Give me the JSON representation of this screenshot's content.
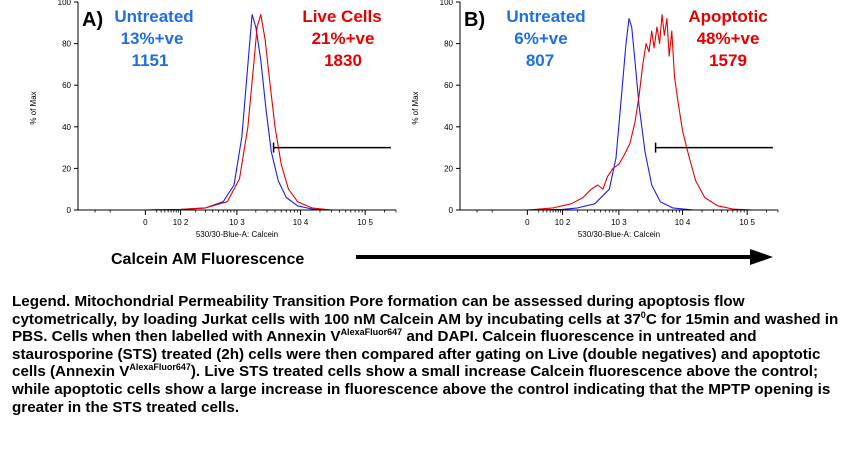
{
  "chart_data": [
    {
      "type": "line",
      "panel_label": "A)",
      "xlabel": "530/30-Blue-A: Calcein",
      "ylabel": "% of Max",
      "xscale": "log",
      "xlim": [
        -400,
        300000
      ],
      "ylim": [
        0,
        100
      ],
      "yticks": [
        0,
        20,
        40,
        60,
        80,
        100
      ],
      "xtick_labels": [
        "0",
        "10 2",
        "10 3",
        "10 4",
        "10 5"
      ],
      "xtick_values": [
        0,
        100,
        1000,
        10000,
        100000
      ],
      "series": [
        {
          "name": "Untreated",
          "color": "#1e1ee6",
          "points": [
            [
              0,
              0
            ],
            [
              100,
              0.3
            ],
            [
              300,
              1
            ],
            [
              600,
              4
            ],
            [
              900,
              12
            ],
            [
              1200,
              35
            ],
            [
              1500,
              70
            ],
            [
              1750,
              94
            ],
            [
              2000,
              88
            ],
            [
              2400,
              72
            ],
            [
              2900,
              48
            ],
            [
              3500,
              28
            ],
            [
              4500,
              14
            ],
            [
              6000,
              6
            ],
            [
              9000,
              2
            ],
            [
              15000,
              0.5
            ],
            [
              30000,
              0
            ]
          ]
        },
        {
          "name": "Live Cells",
          "color": "#e60000",
          "points": [
            [
              0,
              0
            ],
            [
              100,
              0.3
            ],
            [
              300,
              1
            ],
            [
              700,
              4
            ],
            [
              1100,
              15
            ],
            [
              1500,
              40
            ],
            [
              1850,
              70
            ],
            [
              2100,
              88
            ],
            [
              2400,
              94
            ],
            [
              2800,
              82
            ],
            [
              3300,
              62
            ],
            [
              4000,
              40
            ],
            [
              5000,
              22
            ],
            [
              6500,
              10
            ],
            [
              9000,
              4
            ],
            [
              15000,
              1
            ],
            [
              30000,
              0
            ]
          ]
        }
      ],
      "annotations": [
        {
          "name": "Untreated",
          "pct": "13%+ve",
          "mfi": "1151",
          "color": "#1e6fe6"
        },
        {
          "name": "Live Cells",
          "pct": "21%+ve",
          "mfi": "1830",
          "color": "#e60000"
        }
      ],
      "gate": {
        "x_start": 3800,
        "x_end": 250000,
        "y": 30
      }
    },
    {
      "type": "line",
      "panel_label": "B)",
      "xlabel": "530/30-Blue-A: Calcein",
      "ylabel": "% of Max",
      "xscale": "log",
      "xlim": [
        -400,
        300000
      ],
      "ylim": [
        0,
        100
      ],
      "yticks": [
        0,
        20,
        40,
        60,
        80,
        100
      ],
      "xtick_labels": [
        "0",
        "10 2",
        "10 3",
        "10 4",
        "10 5"
      ],
      "xtick_values": [
        0,
        100,
        1000,
        10000,
        100000
      ],
      "series": [
        {
          "name": "Untreated",
          "color": "#1e1ee6",
          "points": [
            [
              0,
              0
            ],
            [
              100,
              0.3
            ],
            [
              200,
              1
            ],
            [
              400,
              3
            ],
            [
              700,
              10
            ],
            [
              900,
              25
            ],
            [
              1100,
              55
            ],
            [
              1300,
              80
            ],
            [
              1450,
              92
            ],
            [
              1600,
              88
            ],
            [
              1800,
              72
            ],
            [
              2100,
              50
            ],
            [
              2600,
              28
            ],
            [
              3300,
              12
            ],
            [
              4500,
              4
            ],
            [
              7000,
              1
            ],
            [
              15000,
              0
            ]
          ]
        },
        {
          "name": "Apoptotic",
          "color": "#e60000",
          "points": [
            [
              0,
              0
            ],
            [
              60,
              1
            ],
            [
              150,
              3
            ],
            [
              250,
              6
            ],
            [
              350,
              10
            ],
            [
              450,
              12
            ],
            [
              550,
              10
            ],
            [
              650,
              16
            ],
            [
              800,
              20
            ],
            [
              1000,
              22
            ],
            [
              1200,
              26
            ],
            [
              1500,
              32
            ],
            [
              1800,
              42
            ],
            [
              2100,
              55
            ],
            [
              2400,
              70
            ],
            [
              2700,
              80
            ],
            [
              3000,
              76
            ],
            [
              3300,
              86
            ],
            [
              3600,
              78
            ],
            [
              4000,
              88
            ],
            [
              4400,
              80
            ],
            [
              4800,
              94
            ],
            [
              5200,
              84
            ],
            [
              5700,
              92
            ],
            [
              6200,
              74
            ],
            [
              6800,
              86
            ],
            [
              7500,
              64
            ],
            [
              8500,
              52
            ],
            [
              10000,
              38
            ],
            [
              12500,
              26
            ],
            [
              16000,
              14
            ],
            [
              22000,
              6
            ],
            [
              35000,
              2
            ],
            [
              60000,
              0.5
            ],
            [
              120000,
              0
            ]
          ]
        }
      ],
      "annotations": [
        {
          "name": "Untreated",
          "pct": "6%+ve",
          "mfi": "807",
          "color": "#1e6fe6"
        },
        {
          "name": "Apoptotic",
          "pct": "48%+ve",
          "mfi": "1579",
          "color": "#e60000"
        }
      ],
      "gate": {
        "x_start": 3800,
        "x_end": 250000,
        "y": 30
      }
    }
  ],
  "axis_caption": "Calcein AM Fluorescence",
  "legend": {
    "part1": "Legend. Mitochondrial Permeability Transition Pore formation can be assessed during apoptosis flow cytometrically, by loading Jurkat cells with 100 nM Calcein AM by incubating cells at 37",
    "temp_sup": "0",
    "part2": "C for 15min and washed in PBS. Cells when then labelled with Annexin V",
    "fluor_sup_1": "AlexaFluor647",
    "part3": " and DAPI. Calcein fluorescence in untreated and staurosporine (STS) treated (2h) cells were then compared after gating on Live (double negatives) and apoptotic cells (Annexin V",
    "fluor_sup_2": "AlexaFluor647",
    "part4": "). Live STS treated cells show a small increase Calcein fluorescence above the control; while apoptotic cells show a large increase in fluorescence above the control indicating that the MPTP opening is greater in the STS treated cells."
  }
}
